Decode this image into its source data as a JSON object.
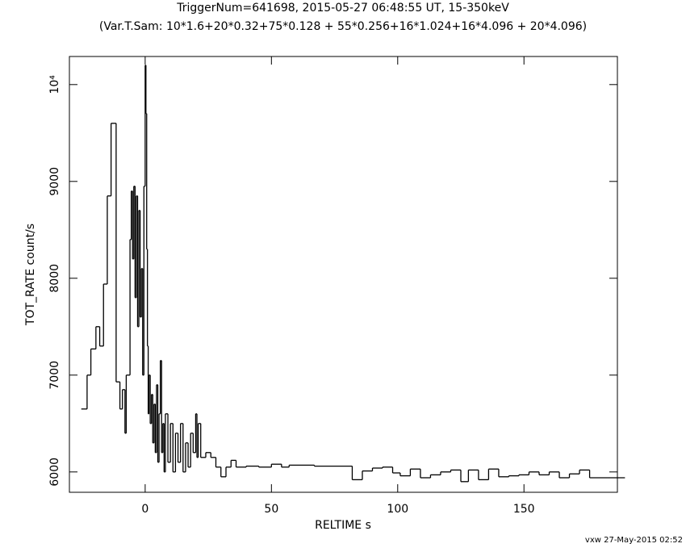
{
  "chart_data": {
    "type": "line",
    "step": true,
    "title": "TriggerNum=641698, 2015-05-27 06:48:55 UT, 15-350keV",
    "subtitle": "(Var.T.Sam: 10*1.6+20*0.32+75*0.128  +  55*0.256+16*1.024+16*4.096  +  20*4.096)",
    "x_label": "RELTIME  s",
    "y_label": "TOT_RATE  count/s",
    "footer": "vxw 27-May-2015 02:52",
    "color": "#000000",
    "xlim": [
      -30,
      187
    ],
    "ylim": [
      5790,
      10290
    ],
    "xticks": [
      0,
      50,
      100,
      150
    ],
    "yticks": [
      6000,
      7000,
      8000,
      9000,
      {
        "value": 10000,
        "label": "10⁴"
      }
    ],
    "x": [
      -25.3,
      -23,
      -21.5,
      -19.5,
      -18,
      -16.5,
      -15,
      -13.5,
      -11.5,
      -10,
      -9,
      -8,
      -7.5,
      -6,
      -5.5,
      -5,
      -4.5,
      -4,
      -3.5,
      -3,
      -2.5,
      -2,
      -1.5,
      -1,
      -0.5,
      0,
      0.3,
      0.6,
      0.9,
      1.2,
      1.5,
      2,
      2.5,
      3,
      3.5,
      4,
      4.5,
      5,
      5.5,
      6,
      6.5,
      7,
      7.5,
      8,
      9,
      10,
      11,
      12,
      13,
      14,
      15,
      16,
      17,
      18,
      19,
      20,
      20.5,
      21,
      22,
      24,
      26,
      28,
      30,
      32,
      34,
      36,
      40,
      45,
      50,
      54,
      57,
      67,
      82,
      86,
      90,
      94,
      98,
      101,
      105,
      109,
      113,
      117,
      121,
      125,
      128,
      132,
      136,
      140,
      144,
      148,
      152,
      156,
      160,
      164,
      168,
      172,
      176,
      183
    ],
    "values": [
      6650,
      7000,
      7270,
      7500,
      7300,
      7940,
      8850,
      9600,
      6930,
      6650,
      6850,
      6400,
      7000,
      8400,
      8900,
      8200,
      8950,
      7800,
      8850,
      7500,
      8700,
      7600,
      8100,
      7000,
      8950,
      10200,
      9700,
      8300,
      7300,
      6600,
      7000,
      6500,
      6800,
      6300,
      6700,
      6200,
      6900,
      6100,
      6600,
      7150,
      6200,
      6500,
      6000,
      6600,
      6100,
      6500,
      6000,
      6400,
      6100,
      6500,
      6000,
      6300,
      6050,
      6400,
      6200,
      6600,
      6150,
      6500,
      6150,
      6200,
      6150,
      6050,
      5950,
      6050,
      6120,
      6050,
      6060,
      6050,
      6080,
      6050,
      6070,
      6060,
      5920,
      6010,
      6040,
      6050,
      5990,
      5960,
      6030,
      5940,
      5970,
      6000,
      6020,
      5900,
      6020,
      5920,
      6030,
      5950,
      5960,
      5970,
      6000,
      5970,
      6000,
      5940,
      5980,
      6020,
      5940,
      5940
    ]
  }
}
